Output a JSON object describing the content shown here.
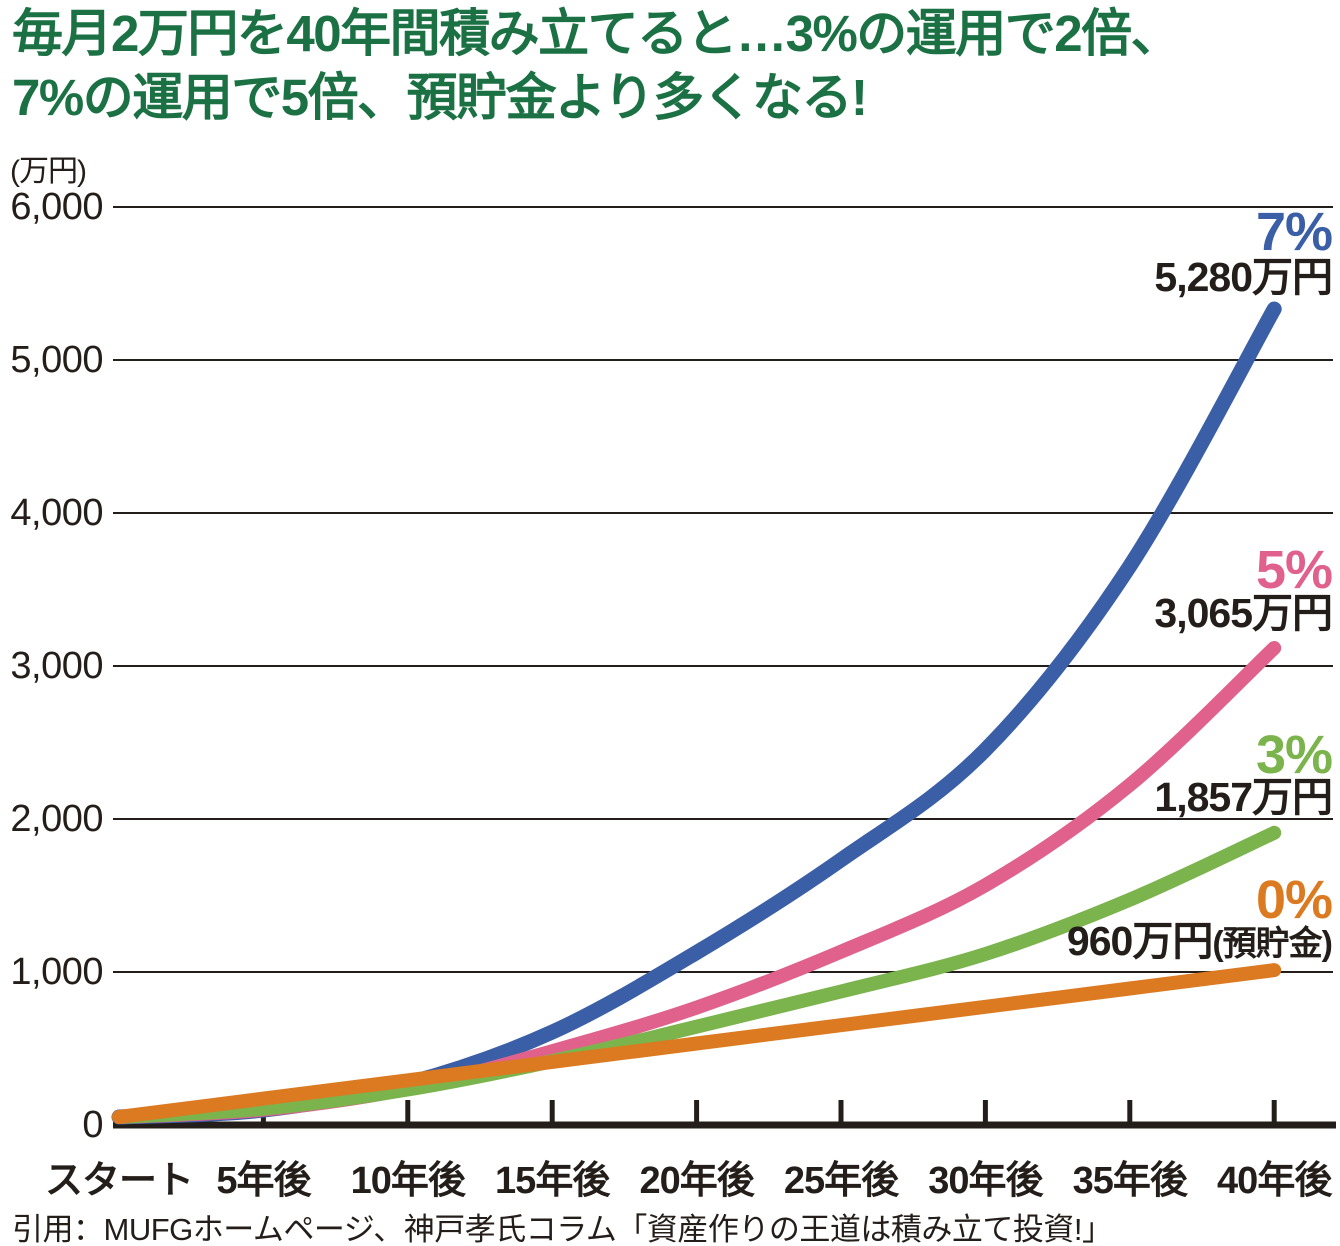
{
  "title": {
    "line1": "毎月2万円を40年間積み立てると…3%の運用で2倍、",
    "line2": "7%の運用で5倍、預貯金より多くなる!"
  },
  "y_axis_unit": "(万円)",
  "footer": "引用：MUFGホームページ、神戸孝氏コラム「資産作りの王道は積み立て投資!」",
  "colors": {
    "title_green": "#1B7144",
    "ink": "#241E1A",
    "line_7pct": "#3A5FA7",
    "line_5pct": "#E0618C",
    "line_3pct": "#7BB34C",
    "line_0pct": "#DB7A20"
  },
  "chart_data": {
    "type": "line",
    "title": "毎月2万円を40年間積み立てると…3%の運用で2倍、7%の運用で5倍、預貯金より多くなる!",
    "y_unit": "万円",
    "ylim": [
      0,
      6000
    ],
    "grid": "horizontal",
    "legend_position": "right-end-labels",
    "x_categories": [
      "スタート",
      "5年後",
      "10年後",
      "15年後",
      "20年後",
      "25年後",
      "30年後",
      "35年後",
      "40年後"
    ],
    "y_ticks": [
      "6,000",
      "5,000",
      "4,000",
      "3,000",
      "2,000",
      "1,000",
      "0"
    ],
    "series": [
      {
        "name": "7%",
        "color": "#3A5FA7",
        "final_value": 5280,
        "final_label": "5,280万円",
        "final_label_suffix": "",
        "values": [
          0,
          45,
          220,
          555,
          1075,
          1680,
          2400,
          3600,
          5280
        ]
      },
      {
        "name": "5%",
        "color": "#E0618C",
        "final_value": 3065,
        "final_label": "3,065万円",
        "final_label_suffix": "",
        "values": [
          0,
          48,
          185,
          430,
          715,
          1080,
          1515,
          2170,
          3065
        ]
      },
      {
        "name": "3%",
        "color": "#7BB34C",
        "final_value": 1857,
        "final_label": "1,857万円",
        "final_label_suffix": "",
        "values": [
          0,
          55,
          180,
          365,
          590,
          820,
          1065,
          1420,
          1857
        ]
      },
      {
        "name": "0%",
        "color": "#DB7A20",
        "final_value": 960,
        "final_label": "960万円",
        "final_label_suffix": "(預貯金)",
        "values": [
          0,
          120,
          240,
          360,
          480,
          600,
          720,
          840,
          960
        ]
      }
    ]
  }
}
